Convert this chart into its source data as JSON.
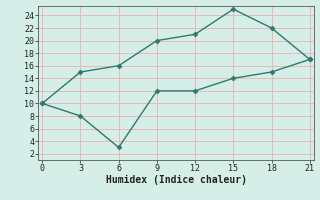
{
  "xlabel": "Humidex (Indice chaleur)",
  "x": [
    0,
    3,
    6,
    9,
    12,
    15,
    18,
    21
  ],
  "line1_y": [
    10,
    15,
    16,
    20,
    21,
    25,
    22,
    17
  ],
  "line2_y": [
    10,
    8,
    3,
    12,
    12,
    14,
    15,
    17
  ],
  "line_color": "#2d7a6c",
  "bg_color": "#d6eee8",
  "grid_color": "#e8b8b8",
  "xlim": [
    -0.3,
    21.3
  ],
  "ylim": [
    1,
    25.5
  ],
  "xticks": [
    0,
    3,
    6,
    9,
    12,
    15,
    18,
    21
  ],
  "yticks": [
    2,
    4,
    6,
    8,
    10,
    12,
    14,
    16,
    18,
    20,
    22,
    24
  ],
  "markersize": 2.5,
  "linewidth": 1.0,
  "tick_fontsize": 6,
  "label_fontsize": 7
}
